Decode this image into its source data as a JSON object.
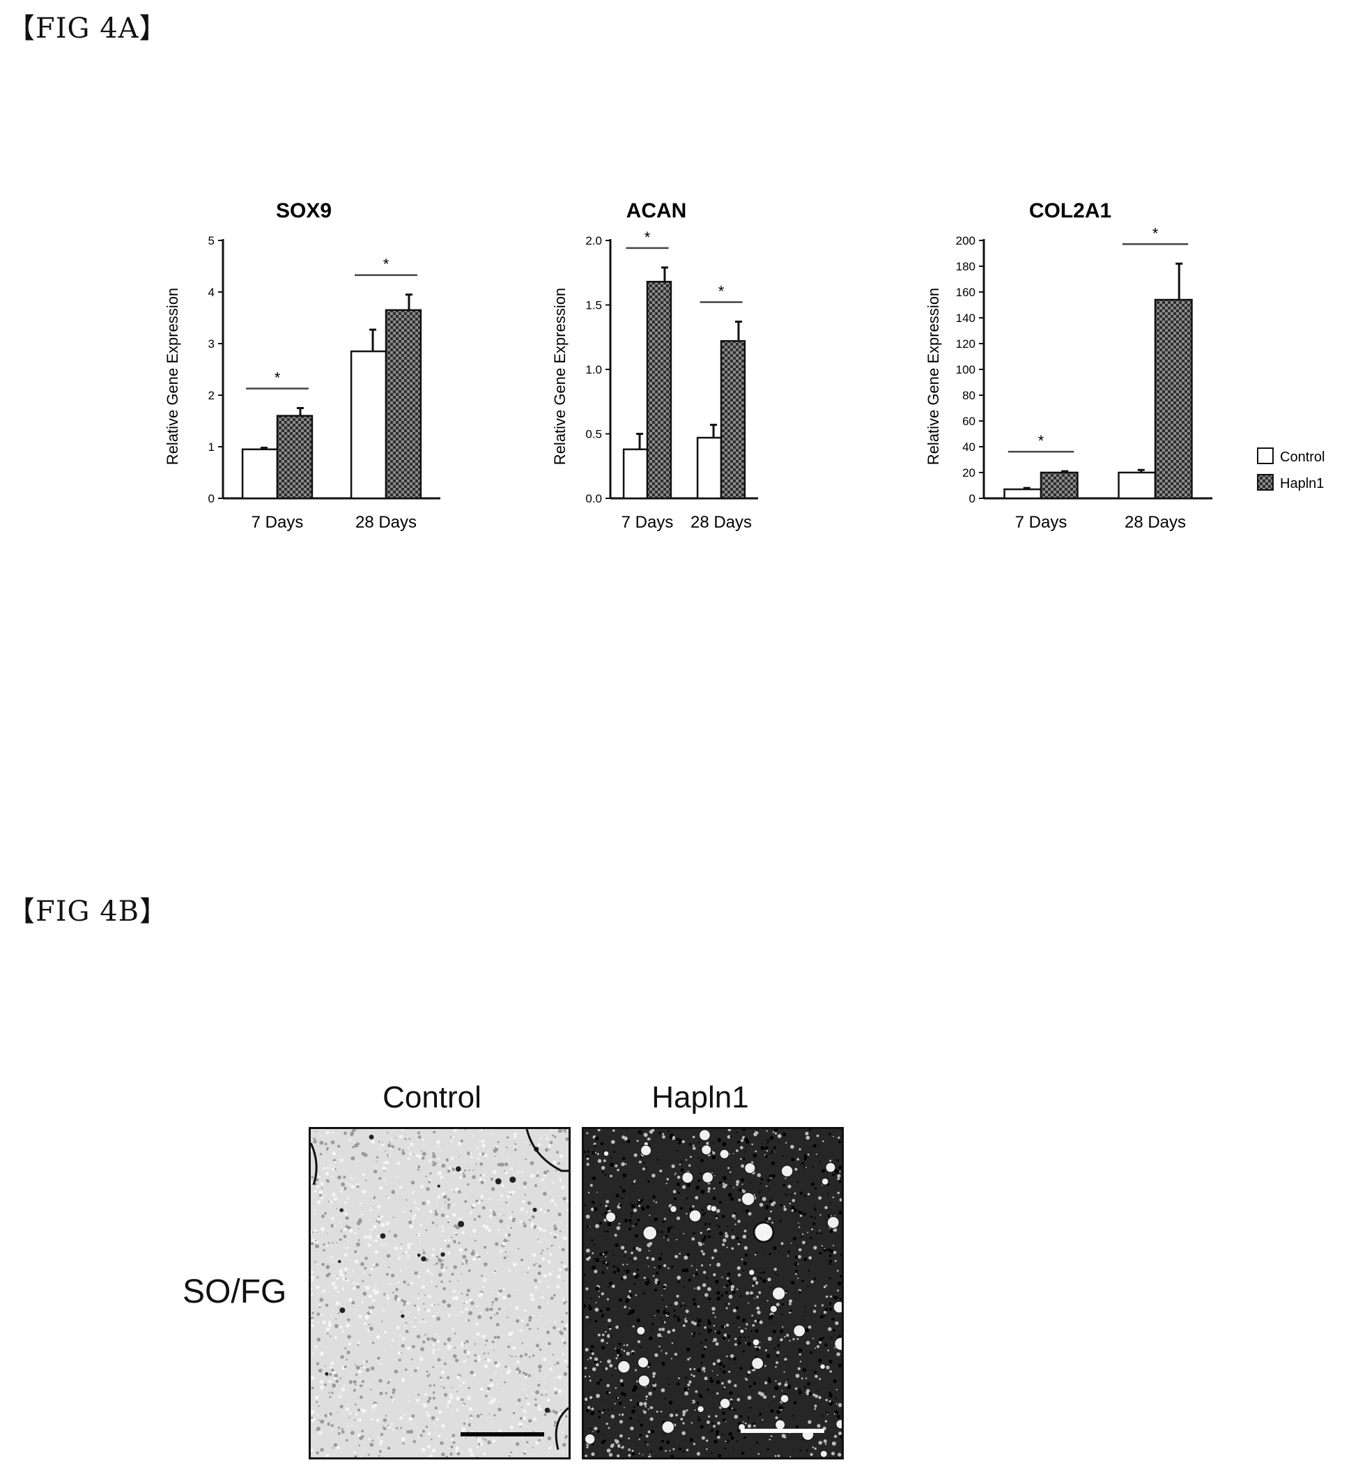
{
  "fig_a_label": "【FIG 4A】",
  "fig_b_label": "【FIG 4B】",
  "chart_data": [
    {
      "type": "bar",
      "title": "SOX9",
      "ylabel": "Relative Gene Expression",
      "categories": [
        "7 Days",
        "28 Days"
      ],
      "ylim": [
        0,
        5
      ],
      "yticks": [
        0,
        1,
        2,
        3,
        4,
        5
      ],
      "yticklabels": [
        "0",
        "1",
        "2",
        "3",
        "4",
        "5"
      ],
      "series": [
        {
          "name": "Control",
          "values": [
            0.95,
            2.85
          ],
          "errors": [
            0.03,
            0.42
          ]
        },
        {
          "name": "Hapln1",
          "values": [
            1.6,
            3.65
          ],
          "errors": [
            0.15,
            0.3
          ]
        }
      ],
      "significance": [
        "*",
        "*"
      ]
    },
    {
      "type": "bar",
      "title": "ACAN",
      "ylabel": "Relative Gene Expression",
      "categories": [
        "7 Days",
        "28 Days"
      ],
      "ylim": [
        0,
        2.0
      ],
      "yticks": [
        0,
        0.5,
        1.0,
        1.5,
        2.0
      ],
      "yticklabels": [
        "0.0",
        "0.5",
        "1.0",
        "1.5",
        "2.0"
      ],
      "series": [
        {
          "name": "Control",
          "values": [
            0.38,
            0.47
          ],
          "errors": [
            0.12,
            0.1
          ]
        },
        {
          "name": "Hapln1",
          "values": [
            1.68,
            1.22
          ],
          "errors": [
            0.11,
            0.15
          ]
        }
      ],
      "significance": [
        "*",
        "*"
      ]
    },
    {
      "type": "bar",
      "title": "COL2A1",
      "ylabel": "Relative Gene Expression",
      "categories": [
        "7 Days",
        "28 Days"
      ],
      "ylim": [
        0,
        200
      ],
      "yticks": [
        0,
        20,
        40,
        60,
        80,
        100,
        120,
        140,
        160,
        180,
        200
      ],
      "yticklabels": [
        "0",
        "20",
        "40",
        "60",
        "80",
        "100",
        "120",
        "140",
        "160",
        "180",
        "200"
      ],
      "series": [
        {
          "name": "Control",
          "values": [
            7,
            20
          ],
          "errors": [
            1,
            2
          ]
        },
        {
          "name": "Hapln1",
          "values": [
            20,
            154
          ],
          "errors": [
            1,
            28
          ]
        }
      ],
      "significance": [
        "*",
        "*"
      ],
      "legend": [
        "Control",
        "Hapln1"
      ]
    }
  ],
  "fig_b": {
    "column_labels": [
      "Control",
      "Hapln1"
    ],
    "row_label": "SO/FG"
  },
  "colors": {
    "control_fill": "#ffffff",
    "hapln1_fill": "#3a3a3a",
    "axis": "#111111"
  }
}
